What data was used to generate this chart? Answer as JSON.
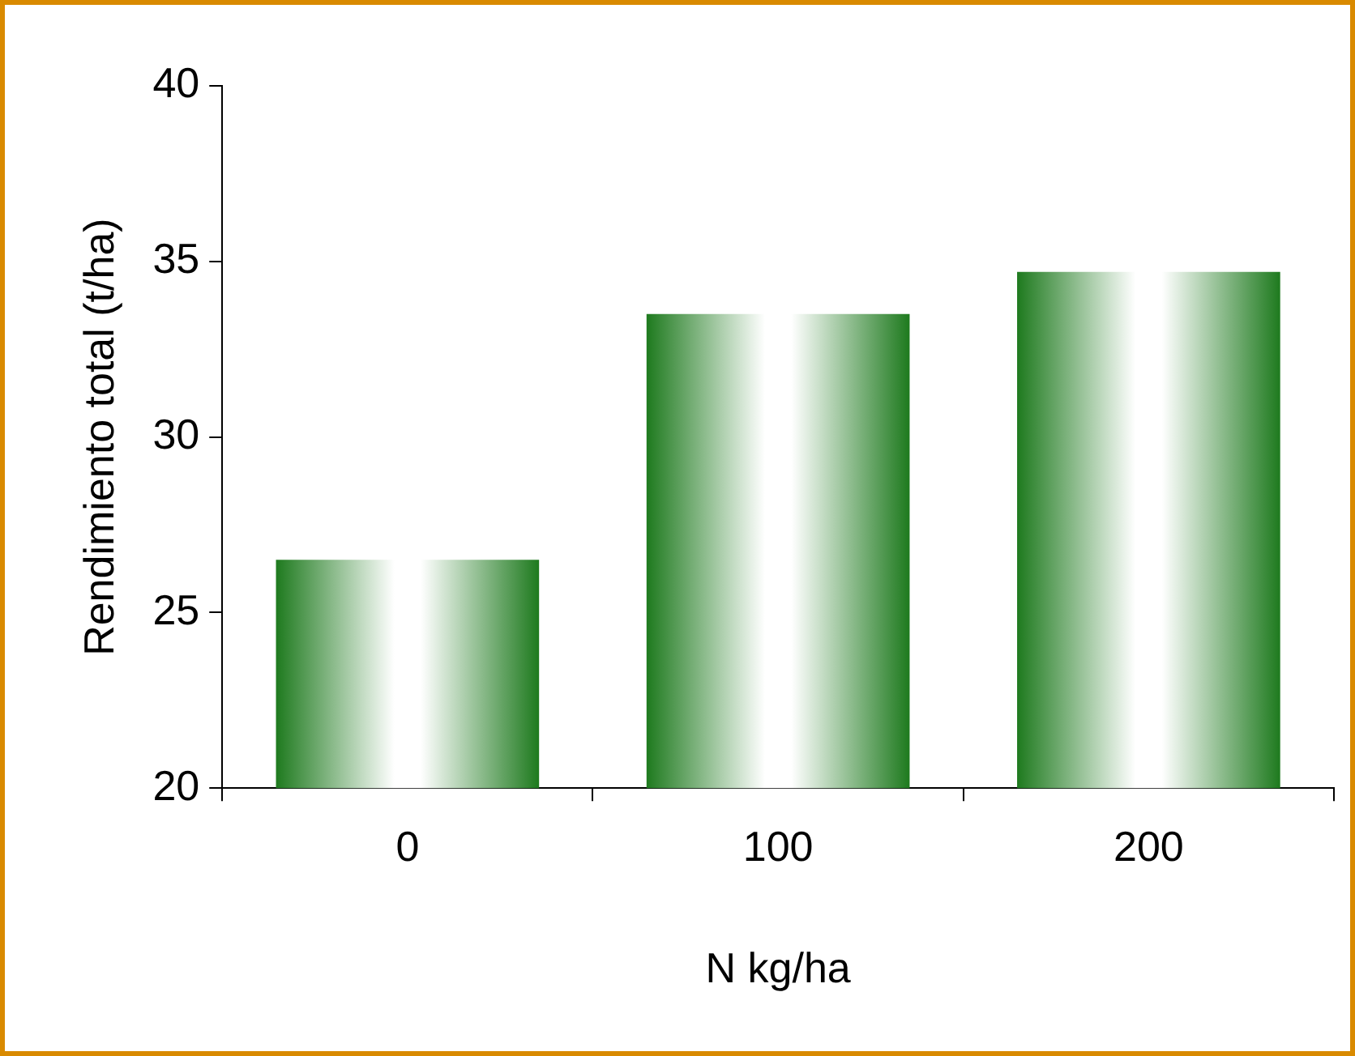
{
  "chart_data": {
    "type": "bar",
    "xlabel": "N kg/ha",
    "ylabel": "Rendimiento total (t/ha)",
    "categories": [
      "0",
      "100",
      "200"
    ],
    "values": [
      26.5,
      33.5,
      34.7
    ],
    "color": "#1e7a1e",
    "ylim": [
      20,
      40
    ],
    "yticks": [
      20,
      25,
      30,
      35,
      40
    ],
    "grid": false,
    "legend": false
  }
}
